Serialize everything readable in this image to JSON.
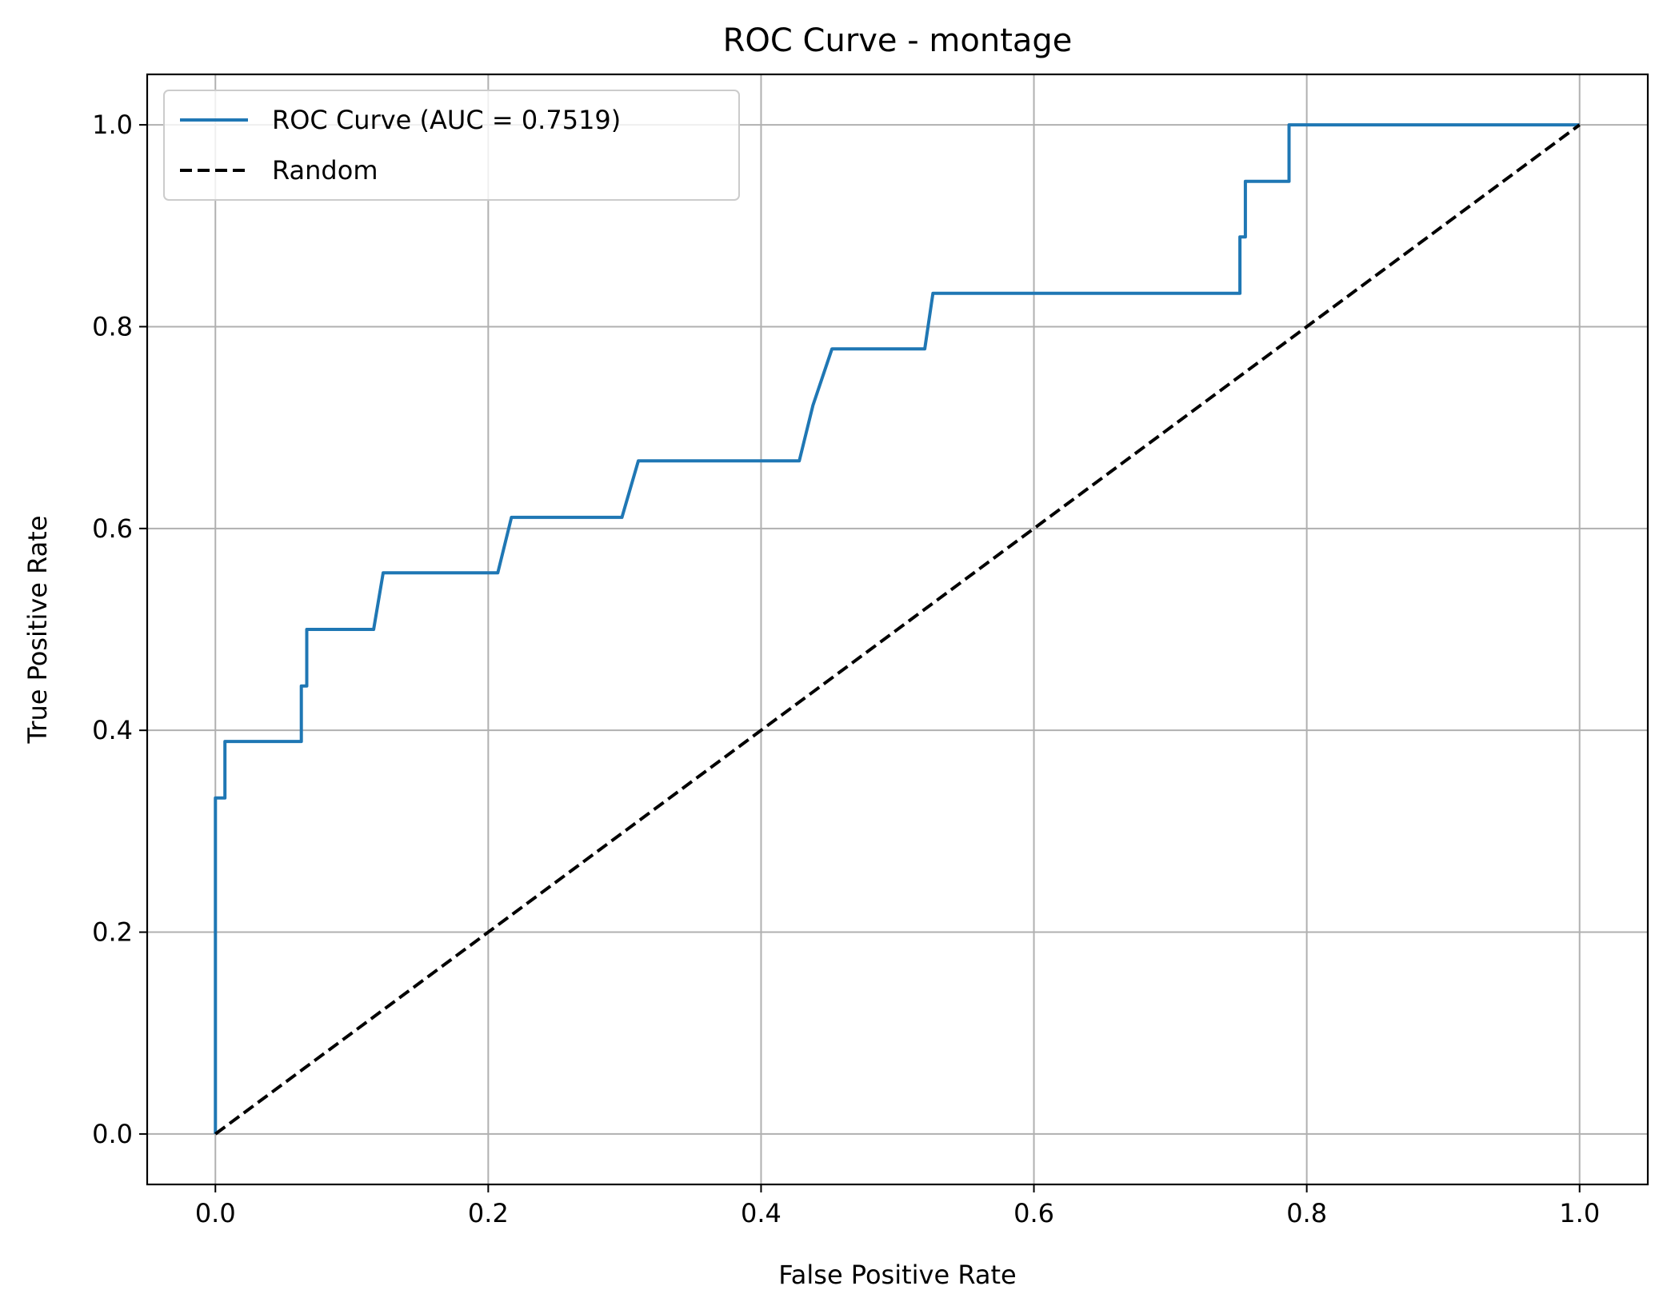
{
  "chart_data": {
    "type": "line",
    "title": "ROC Curve - montage",
    "xlabel": "False Positive Rate",
    "ylabel": "True Positive Rate",
    "xlim": [
      -0.05,
      1.05
    ],
    "ylim": [
      -0.05,
      1.05
    ],
    "xticks": [
      0.0,
      0.2,
      0.4,
      0.6,
      0.8,
      1.0
    ],
    "yticks": [
      0.0,
      0.2,
      0.4,
      0.6,
      0.8,
      1.0
    ],
    "xtick_labels": [
      "0.0",
      "0.2",
      "0.4",
      "0.6",
      "0.8",
      "1.0"
    ],
    "ytick_labels": [
      "0.0",
      "0.2",
      "0.4",
      "0.6",
      "0.8",
      "1.0"
    ],
    "grid": true,
    "legend_position": "top-left",
    "series": [
      {
        "name": "ROC Curve (AUC = 0.7519)",
        "color": "#1f77b4",
        "style": "solid",
        "x": [
          0.0,
          0.0,
          0.0,
          0.007,
          0.007,
          0.063,
          0.063,
          0.067,
          0.067,
          0.116,
          0.123,
          0.207,
          0.217,
          0.298,
          0.31,
          0.428,
          0.438,
          0.452,
          0.52,
          0.526,
          0.751,
          0.751,
          0.755,
          0.755,
          0.787,
          0.787,
          1.0
        ],
        "y": [
          0.0,
          0.333,
          0.333,
          0.333,
          0.389,
          0.389,
          0.444,
          0.444,
          0.5,
          0.5,
          0.556,
          0.556,
          0.611,
          0.611,
          0.667,
          0.667,
          0.722,
          0.778,
          0.778,
          0.833,
          0.833,
          0.889,
          0.889,
          0.944,
          0.944,
          1.0,
          1.0
        ]
      },
      {
        "name": "Random",
        "color": "#000000",
        "style": "dashed",
        "x": [
          0.0,
          1.0
        ],
        "y": [
          0.0,
          1.0
        ]
      }
    ]
  }
}
